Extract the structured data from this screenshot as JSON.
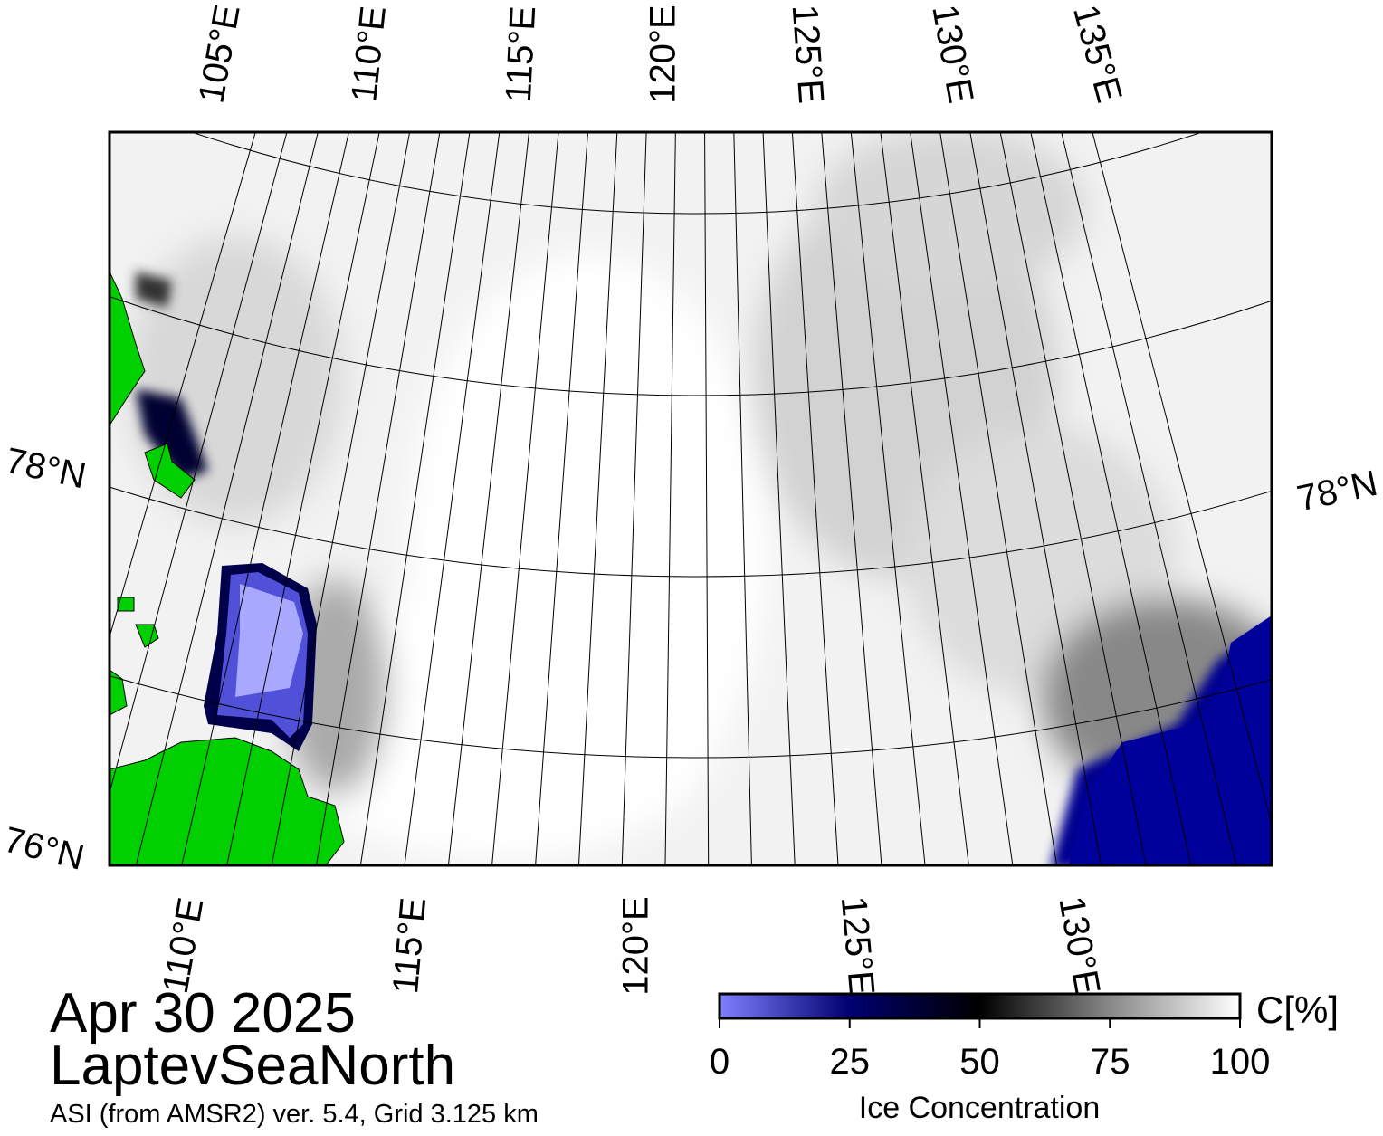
{
  "map": {
    "date": "Apr 30 2025",
    "region": "LaptevSeaNorth",
    "source": "ASI (from AMSR2) ver. 5.4,  Grid 3.125 km",
    "top_lon_labels": [
      "105°E",
      "110°E",
      "115°E",
      "120°E",
      "125°E",
      "130°E",
      "135°E"
    ],
    "bottom_lon_labels": [
      "110°E",
      "115°E",
      "120°E",
      "125°E",
      "130°E"
    ],
    "left_lat_labels": [
      "78°N",
      "76°N"
    ],
    "right_lat_labels": [
      "78°N"
    ]
  },
  "colorbar": {
    "label": "Ice Concentration",
    "unit": "C[%]",
    "range": [
      0,
      100
    ],
    "ticks": [
      0,
      25,
      50,
      75,
      100
    ]
  }
}
